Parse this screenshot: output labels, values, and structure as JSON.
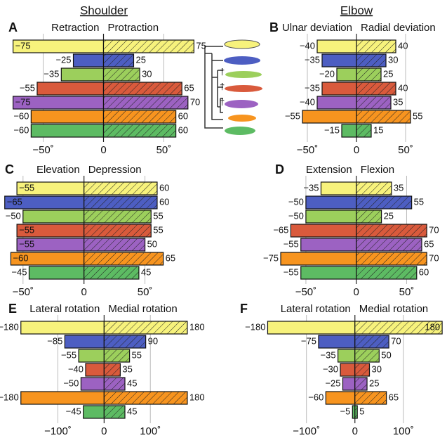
{
  "headers": [
    "Shoulder",
    "Elbow"
  ],
  "extinct_marker": "†",
  "row_colors": [
    "#f7f27c",
    "#4d5ec2",
    "#9ccf5c",
    "#d95a3c",
    "#9c62c2",
    "#f7941f",
    "#5dbb63"
  ],
  "chart_data": [
    {
      "type": "bar",
      "letter": "A",
      "xlim": [
        -80,
        80
      ],
      "xticks": [
        {
          "value": -50,
          "label": "−50˚"
        },
        0,
        {
          "value": 50,
          "label": "50˚"
        }
      ],
      "series": [
        {
          "name": "Retraction",
          "values": [
            -75,
            -25,
            -35,
            -55,
            -75,
            -60,
            -60
          ],
          "value_labels": [
            "−75",
            "−25",
            "−35",
            "−55",
            "−75",
            "−60",
            "−60"
          ]
        },
        {
          "name": "Protraction",
          "values": [
            75,
            25,
            30,
            65,
            70,
            60,
            60
          ]
        }
      ]
    },
    {
      "type": "bar",
      "letter": "B",
      "xlim": [
        -90,
        90
      ],
      "xticks": [
        {
          "value": -50,
          "label": "−50˚"
        },
        0,
        {
          "value": 50,
          "label": "50˚"
        }
      ],
      "series": [
        {
          "name": "Ulnar deviation",
          "values": [
            -40,
            -35,
            -20,
            -35,
            -40,
            -55,
            -15
          ],
          "value_labels": [
            "−40",
            "−35",
            "−20",
            "−35",
            "−40",
            "−55",
            "−15"
          ]
        },
        {
          "name": "Radial deviation",
          "values": [
            40,
            30,
            25,
            40,
            35,
            55,
            15
          ]
        }
      ]
    },
    {
      "type": "bar",
      "letter": "C",
      "xlim": [
        -66,
        98
      ],
      "xticks": [
        {
          "value": -50,
          "label": "−50˚"
        },
        0,
        {
          "value": 50,
          "label": "50˚"
        }
      ],
      "series": [
        {
          "name": "Elevation",
          "values": [
            -55,
            -65,
            -50,
            -55,
            -55,
            -60,
            -45
          ],
          "value_labels": [
            "−55",
            "−65",
            "−50",
            "−55",
            "−55",
            "−60",
            "−45"
          ]
        },
        {
          "name": "Depression",
          "values": [
            60,
            60,
            55,
            55,
            50,
            65,
            45
          ]
        }
      ]
    },
    {
      "type": "bar",
      "letter": "D",
      "xlim": [
        -82,
        88
      ],
      "xticks": [
        {
          "value": -50,
          "label": "−50˚"
        },
        0,
        {
          "value": 50,
          "label": "50˚"
        }
      ],
      "series": [
        {
          "name": "Extension",
          "values": [
            -35,
            -50,
            -50,
            -65,
            -55,
            -75,
            -55
          ],
          "value_labels": [
            "−35",
            "−50",
            "−50",
            "−65",
            "−55",
            "−75",
            "−55"
          ]
        },
        {
          "name": "Flexion",
          "values": [
            35,
            55,
            25,
            70,
            65,
            70,
            60
          ]
        }
      ]
    },
    {
      "type": "bar",
      "letter": "E",
      "xlim": [
        -210,
        215
      ],
      "xticks": [
        {
          "value": -100,
          "label": "−100˚"
        },
        0,
        {
          "value": 100,
          "label": "100˚"
        }
      ],
      "series": [
        {
          "name": "Lateral rotation",
          "values": [
            -180,
            -85,
            -55,
            -40,
            -50,
            -180,
            -45
          ],
          "value_labels": [
            "−180",
            "−85",
            "−55",
            "−40",
            "−50",
            "−180",
            "−45"
          ]
        },
        {
          "name": "Medial rotation",
          "values": [
            180,
            90,
            55,
            35,
            45,
            180,
            45
          ]
        }
      ]
    },
    {
      "type": "bar",
      "letter": "F",
      "xlim": [
        -240,
        190
      ],
      "xticks": [
        {
          "value": -100,
          "label": "−100˚"
        },
        0,
        {
          "value": 100,
          "label": "100˚"
        }
      ],
      "series": [
        {
          "name": "Lateral rotation",
          "values": [
            -180,
            -75,
            -35,
            -30,
            -25,
            -60,
            -5
          ],
          "value_labels": [
            "−180",
            "−75",
            "−35",
            "−30",
            "−25",
            "−60",
            "−5"
          ]
        },
        {
          "name": "Medial rotation",
          "values": [
            180,
            70,
            50,
            30,
            25,
            65,
            5
          ]
        }
      ]
    }
  ]
}
